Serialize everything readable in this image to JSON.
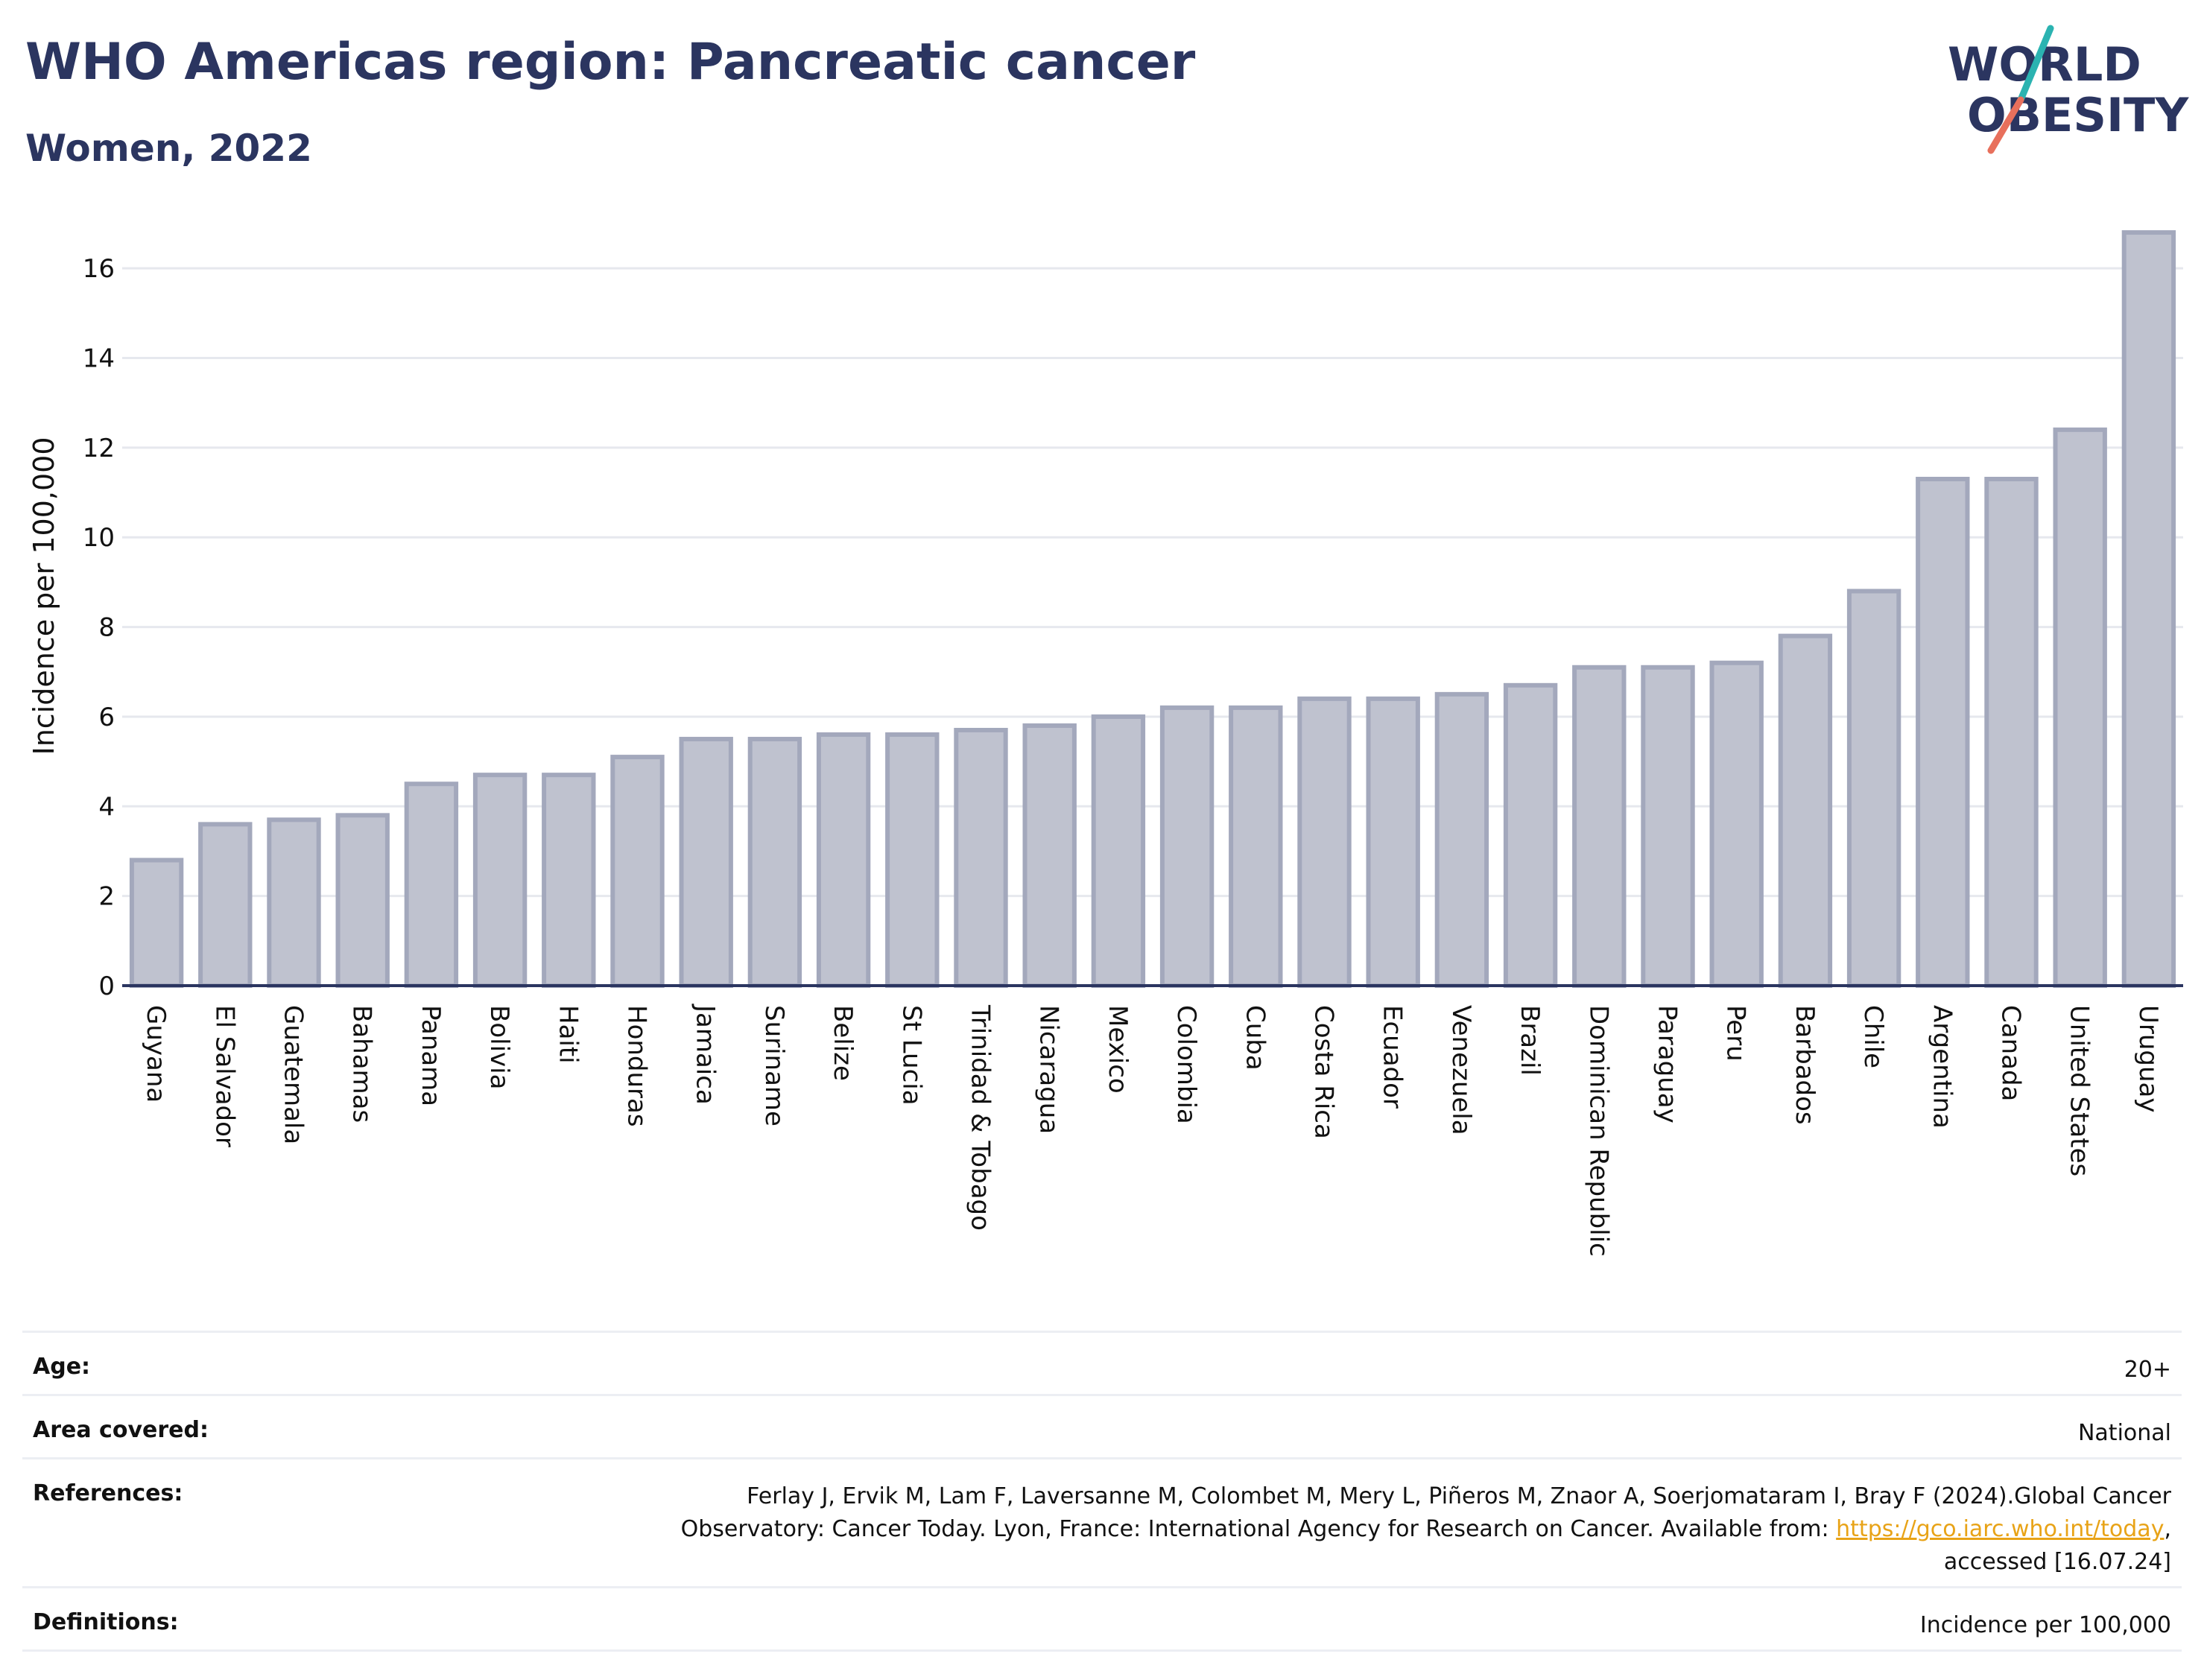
{
  "header": {
    "title": "WHO Americas region: Pancreatic cancer",
    "subtitle": "Women, 2022"
  },
  "logo": {
    "line1": "WORLD",
    "line2": "OBESITY",
    "colors": {
      "text": "#2b3560",
      "slash_teal": "#2bb3b1",
      "slash_coral": "#e8705c"
    }
  },
  "colors": {
    "bar_fill": "#bfc2cf",
    "bar_stroke": "#a3a8bc",
    "axis": "#2b3560",
    "grid": "#e6e8ee",
    "title": "#2b3560",
    "link": "#e8a317"
  },
  "chart_data": {
    "type": "bar",
    "title": "",
    "xlabel": "",
    "ylabel": "Incidence per 100,000",
    "ylim": [
      0,
      17
    ],
    "yticks": [
      0,
      2,
      4,
      6,
      8,
      10,
      12,
      14,
      16
    ],
    "grid": true,
    "categories": [
      "Guyana",
      "El Salvador",
      "Guatemala",
      "Bahamas",
      "Panama",
      "Bolivia",
      "Haiti",
      "Honduras",
      "Jamaica",
      "Suriname",
      "Belize",
      "St Lucia",
      "Trinidad & Tobago",
      "Nicaragua",
      "Mexico",
      "Colombia",
      "Cuba",
      "Costa Rica",
      "Ecuador",
      "Venezuela",
      "Brazil",
      "Dominican Republic",
      "Paraguay",
      "Peru",
      "Barbados",
      "Chile",
      "Argentina",
      "Canada",
      "United States",
      "Uruguay"
    ],
    "values": [
      2.8,
      3.6,
      3.7,
      3.8,
      4.5,
      4.7,
      4.7,
      5.1,
      5.5,
      5.5,
      5.6,
      5.6,
      5.7,
      5.8,
      6.0,
      6.2,
      6.2,
      6.4,
      6.4,
      6.5,
      6.7,
      7.1,
      7.1,
      7.2,
      7.8,
      8.8,
      11.3,
      11.3,
      12.4,
      16.8
    ]
  },
  "meta": {
    "age_label": "Age:",
    "age_value": "20+",
    "area_label": "Area covered:",
    "area_value": "National",
    "references_label": "References:",
    "references_line1": "Ferlay J, Ervik M, Lam F, Laversanne M, Colombet M, Mery L, Piñeros M, Znaor A, Soerjomataram I, Bray F (2024).Global Cancer",
    "references_line2_pre": "Observatory: Cancer Today. Lyon, France: International Agency for Research on Cancer. Available from: ",
    "references_link": "https://gco.iarc.who.int/today",
    "references_line2_post": ",",
    "references_line3": "accessed [16.07.24]",
    "definitions_label": "Definitions:",
    "definitions_value": "Incidence per 100,000"
  }
}
